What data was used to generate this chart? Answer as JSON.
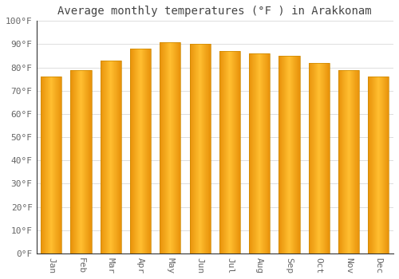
{
  "title": "Average monthly temperatures (°F ) in Arakkonam",
  "months": [
    "Jan",
    "Feb",
    "Mar",
    "Apr",
    "May",
    "Jun",
    "Jul",
    "Aug",
    "Sep",
    "Oct",
    "Nov",
    "Dec"
  ],
  "values": [
    76,
    79,
    83,
    88,
    91,
    90,
    87,
    86,
    85,
    82,
    79,
    76
  ],
  "bar_color_center": "#FFBE30",
  "bar_color_edge": "#E8920A",
  "background_color": "#FFFFFF",
  "grid_color": "#DDDDDD",
  "ylim": [
    0,
    100
  ],
  "yticks": [
    0,
    10,
    20,
    30,
    40,
    50,
    60,
    70,
    80,
    90,
    100
  ],
  "ytick_labels": [
    "0°F",
    "10°F",
    "20°F",
    "30°F",
    "40°F",
    "50°F",
    "60°F",
    "70°F",
    "80°F",
    "90°F",
    "100°F"
  ],
  "title_fontsize": 10,
  "tick_fontsize": 8,
  "font_family": "monospace",
  "bar_width": 0.7,
  "spine_color": "#333333",
  "tick_color": "#666666"
}
